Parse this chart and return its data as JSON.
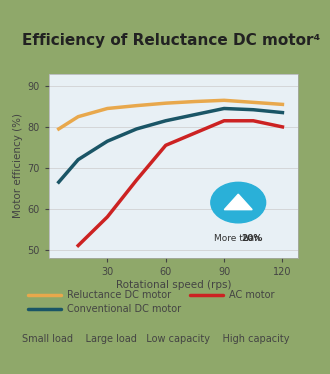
{
  "title": "Efficiency of Reluctance DC motor⁴",
  "xlabel": "Rotational speed (rps)",
  "ylabel": "Motor efficiency (%)",
  "bg_outer": "#8fa86a",
  "bg_plot": "#e8f0f5",
  "ylim": [
    48,
    93
  ],
  "xlim": [
    0,
    128
  ],
  "yticks": [
    50,
    60,
    70,
    80,
    90
  ],
  "xticks": [
    30,
    60,
    90,
    120
  ],
  "reluctance_x": [
    5,
    15,
    30,
    45,
    60,
    75,
    90,
    105,
    120
  ],
  "reluctance_y": [
    79.5,
    82.5,
    84.5,
    85.2,
    85.8,
    86.2,
    86.5,
    86.0,
    85.5
  ],
  "reluctance_color": "#e8a84c",
  "conventional_x": [
    5,
    15,
    30,
    45,
    60,
    75,
    90,
    105,
    120
  ],
  "conventional_y": [
    66.5,
    72.0,
    76.5,
    79.5,
    81.5,
    83.0,
    84.5,
    84.2,
    83.5
  ],
  "conventional_color": "#1a5566",
  "ac_x": [
    15,
    30,
    45,
    60,
    75,
    90,
    105,
    120
  ],
  "ac_y": [
    51.0,
    58.0,
    67.0,
    75.5,
    78.5,
    81.5,
    81.5,
    80.0
  ],
  "ac_color": "#cc2222",
  "line_width": 2.5,
  "annotation_text": "More than 20%",
  "annotation_bold": "20%",
  "circle_color": "#2ab0d8",
  "legend_items": [
    {
      "label": "Reluctance DC motor",
      "color": "#e8a84c"
    },
    {
      "label": "Conventional DC motor",
      "color": "#1a5566"
    },
    {
      "label": "AC motor",
      "color": "#cc2222"
    }
  ],
  "footer_text": "Small load    Large load   Low capacity    High capacity",
  "title_fontsize": 11,
  "axis_fontsize": 7.5,
  "tick_fontsize": 7,
  "legend_fontsize": 7,
  "footer_fontsize": 7
}
